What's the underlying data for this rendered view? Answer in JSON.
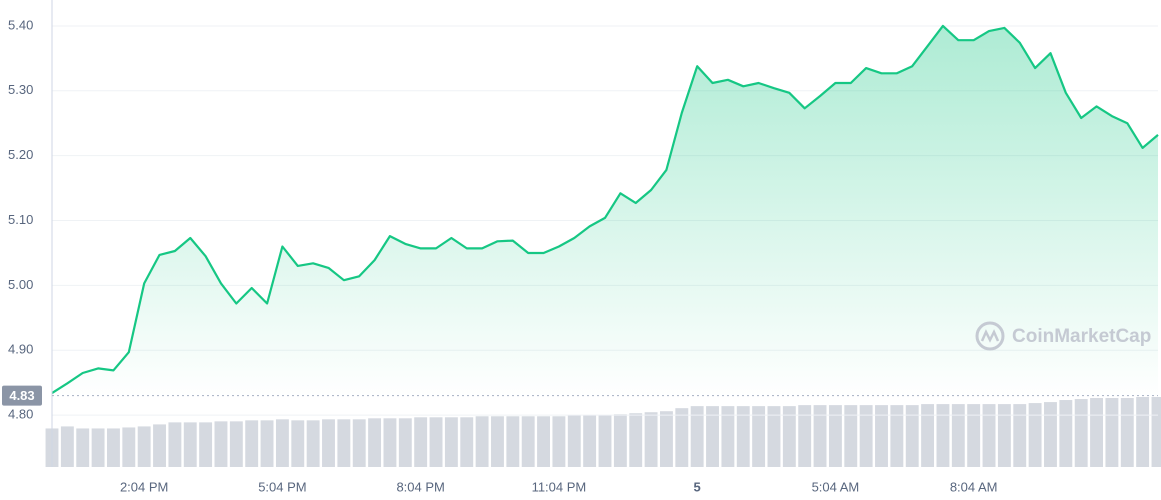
{
  "chart_data": {
    "type": "line",
    "color": "#16c784",
    "categories": [
      null,
      null,
      null,
      null,
      null,
      null,
      "2:04 PM",
      null,
      null,
      null,
      null,
      null,
      null,
      null,
      null,
      "5:04 PM",
      null,
      null,
      null,
      null,
      null,
      null,
      null,
      null,
      "8:04 PM",
      null,
      null,
      null,
      null,
      null,
      null,
      null,
      null,
      "11:04 PM",
      null,
      null,
      null,
      null,
      null,
      null,
      null,
      null,
      "5",
      null,
      null,
      null,
      null,
      null,
      null,
      null,
      null,
      "5:04 AM",
      null,
      null,
      null,
      null,
      null,
      null,
      null,
      null,
      "8:04 AM",
      null,
      null,
      null,
      null,
      null,
      null,
      null,
      null,
      null,
      null,
      null,
      null
    ],
    "values": [
      4.834,
      4.849,
      4.865,
      4.872,
      4.869,
      4.897,
      5.003,
      5.047,
      5.053,
      5.073,
      5.045,
      5.003,
      4.972,
      4.996,
      4.972,
      5.06,
      5.03,
      5.034,
      5.027,
      5.008,
      5.014,
      5.039,
      5.076,
      5.064,
      5.057,
      5.057,
      5.073,
      5.057,
      5.057,
      5.068,
      5.069,
      5.05,
      5.05,
      5.06,
      5.073,
      5.091,
      5.104,
      5.142,
      5.127,
      5.147,
      5.178,
      5.266,
      5.338,
      5.312,
      5.317,
      5.307,
      5.312,
      5.304,
      5.297,
      5.273,
      5.292,
      5.312,
      5.312,
      5.335,
      5.327,
      5.327,
      5.338,
      5.369,
      5.4,
      5.378,
      5.378,
      5.392,
      5.397,
      5.374,
      5.335,
      5.358,
      5.297,
      5.258,
      5.276,
      5.261,
      5.25,
      5.212,
      5.232
    ],
    "volume": [
      38,
      40,
      38,
      38,
      38,
      39,
      40,
      42,
      44,
      44,
      44,
      45,
      45,
      46,
      46,
      47,
      46,
      46,
      47,
      47,
      47,
      48,
      48,
      48,
      49,
      49,
      49,
      49,
      50,
      50,
      50,
      50,
      50,
      50,
      51,
      51,
      51,
      52,
      53,
      54,
      55,
      58,
      60,
      60,
      60,
      60,
      60,
      60,
      60,
      61,
      61,
      61,
      61,
      61,
      61,
      61,
      61,
      62,
      62,
      62,
      62,
      62,
      62,
      62,
      63,
      64,
      66,
      67,
      68,
      68,
      68,
      69,
      69
    ],
    "volume_color": "#d5d9e0",
    "ylim": [
      4.72,
      5.44
    ],
    "yticks": [
      {
        "value": 4.8,
        "label": "4.80"
      },
      {
        "value": 4.9,
        "label": "4.90"
      },
      {
        "value": 5.0,
        "label": "5.00"
      },
      {
        "value": 5.1,
        "label": "5.10"
      },
      {
        "value": 5.2,
        "label": "5.20"
      },
      {
        "value": 5.3,
        "label": "5.30"
      },
      {
        "value": 5.4,
        "label": "5.40"
      }
    ],
    "reference_line": 4.83,
    "grid": true,
    "watermark": "CoinMarketCap"
  }
}
